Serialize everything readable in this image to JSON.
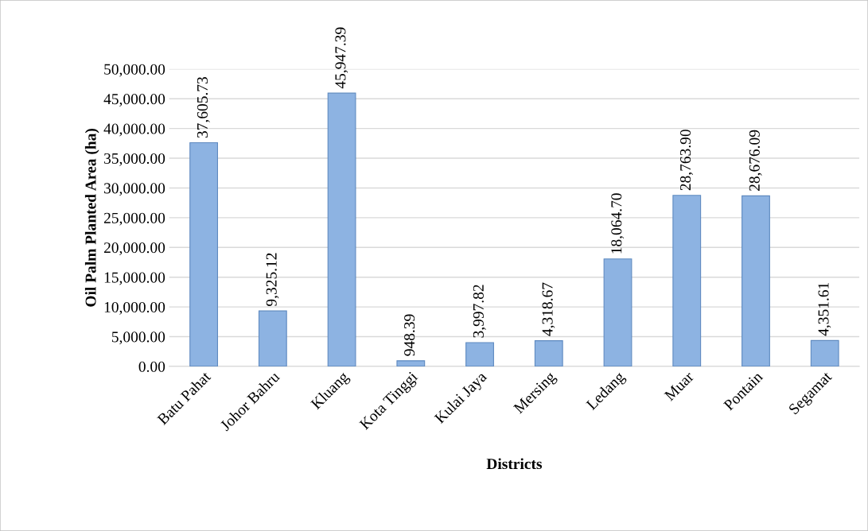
{
  "chart_data": {
    "type": "bar",
    "xlabel": "Districts",
    "ylabel": "Oil Palm Planted Area (ha)",
    "categories": [
      "Batu Pahat",
      "Johor Bahru",
      "Kluang",
      "Kota Tinggi",
      "Kulai Jaya",
      "Mersing",
      "Ledang",
      "Muar",
      "Pontain",
      "Segamat"
    ],
    "values": [
      37605.73,
      9325.12,
      45947.39,
      948.39,
      3997.82,
      4318.67,
      18064.7,
      28763.9,
      28676.09,
      4351.61
    ],
    "value_labels": [
      "37,605.73",
      "9,325.12",
      "45,947.39",
      "948.39",
      "3,997.82",
      "4,318.67",
      "18,064.70",
      "28,763.90",
      "28,676.09",
      "4,351.61"
    ],
    "color": "#8db3e2",
    "ylim": [
      0,
      50000
    ],
    "yticks": [
      {
        "value": 0,
        "label": "0.00"
      },
      {
        "value": 5000,
        "label": "5,000.00"
      },
      {
        "value": 10000,
        "label": "10,000.00"
      },
      {
        "value": 15000,
        "label": "15,000.00"
      },
      {
        "value": 20000,
        "label": "20,000.00"
      },
      {
        "value": 25000,
        "label": "25,000.00"
      },
      {
        "value": 30000,
        "label": "30,000.00"
      },
      {
        "value": 35000,
        "label": "35,000.00"
      },
      {
        "value": 40000,
        "label": "40,000.00"
      },
      {
        "value": 45000,
        "label": "45,000.00"
      },
      {
        "value": 50000,
        "label": "50,000.00"
      }
    ],
    "grid": "y",
    "legend": false
  }
}
